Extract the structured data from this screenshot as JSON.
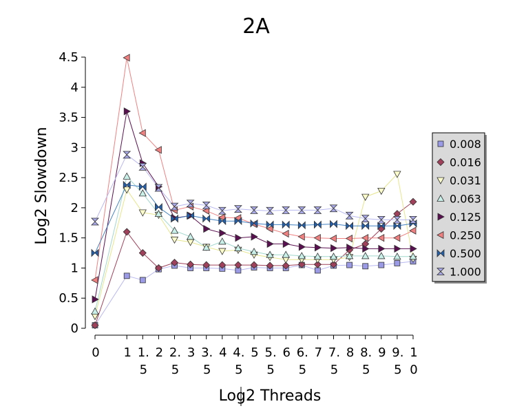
{
  "chart_data": {
    "type": "line",
    "title": "2A",
    "xlabel": "Log2 Threads",
    "ylabel": "Log2 Slowdown",
    "x": [
      0,
      1,
      1.5,
      2,
      2.5,
      3,
      3.5,
      4,
      4.5,
      5,
      5.5,
      6,
      6.5,
      7,
      7.5,
      8,
      8.5,
      9,
      9.5,
      10
    ],
    "x_tick_labels": [
      [
        "0"
      ],
      [
        "1"
      ],
      [
        "1.",
        "5"
      ],
      [
        "2"
      ],
      [
        "2.",
        "5"
      ],
      [
        "3"
      ],
      [
        "3.",
        "5"
      ],
      [
        "4"
      ],
      [
        "4.",
        "5"
      ],
      [
        "5"
      ],
      [
        "5.",
        "5"
      ],
      [
        "6"
      ],
      [
        "6.",
        "5"
      ],
      [
        "7"
      ],
      [
        "7.",
        "5"
      ],
      [
        "8"
      ],
      [
        "8.",
        "5"
      ],
      [
        "9"
      ],
      [
        "9.",
        "5"
      ],
      [
        "1",
        "0"
      ]
    ],
    "ylim": [
      0,
      4.5
    ],
    "y_ticks": [
      "0",
      "0.5",
      "1",
      "1.5",
      "2",
      "2.5",
      "3",
      "3.5",
      "4",
      "4.5"
    ],
    "legend_position": "right",
    "grid": false,
    "series": [
      {
        "name": "0.008",
        "marker": "square",
        "color": "#9a9ae6",
        "line_color": "#b8b8f0",
        "values": [
          0.05,
          0.87,
          0.8,
          0.98,
          1.04,
          1.0,
          1.0,
          0.99,
          0.96,
          1.01,
          1.0,
          1.0,
          1.05,
          0.96,
          1.04,
          1.05,
          1.03,
          1.05,
          1.08,
          1.11
        ]
      },
      {
        "name": "0.016",
        "marker": "diamond",
        "color": "#a0405a",
        "line_color": "#a0405a",
        "values": [
          0.05,
          1.6,
          1.25,
          1.0,
          1.09,
          1.06,
          1.05,
          1.05,
          1.05,
          1.05,
          1.04,
          1.04,
          1.06,
          1.06,
          1.06,
          1.3,
          1.4,
          1.65,
          1.9,
          2.1
        ]
      },
      {
        "name": "0.031",
        "marker": "triangle-down",
        "color": "#ffffcc",
        "line_color": "#e6e68c",
        "values": [
          0.2,
          2.3,
          1.92,
          1.88,
          1.47,
          1.43,
          1.35,
          1.28,
          1.3,
          1.22,
          1.18,
          1.14,
          1.14,
          1.14,
          1.14,
          1.18,
          2.18,
          2.28,
          2.56,
          1.15
        ]
      },
      {
        "name": "0.063",
        "marker": "triangle-up",
        "color": "#c8f0e8",
        "line_color": "#a0d8cc",
        "values": [
          0.28,
          2.52,
          2.24,
          1.9,
          1.62,
          1.52,
          1.34,
          1.44,
          1.33,
          1.27,
          1.22,
          1.22,
          1.2,
          1.19,
          1.19,
          1.2,
          1.2,
          1.2,
          1.19,
          1.19
        ]
      },
      {
        "name": "0.125",
        "marker": "triangle-right",
        "color": "#5a1050",
        "line_color": "#5a1050",
        "values": [
          0.48,
          3.6,
          2.74,
          2.35,
          1.83,
          1.87,
          1.65,
          1.58,
          1.5,
          1.52,
          1.4,
          1.4,
          1.35,
          1.34,
          1.33,
          1.34,
          1.32,
          1.32,
          1.32,
          1.32
        ]
      },
      {
        "name": "0.250",
        "marker": "triangle-left",
        "color": "#f08080",
        "line_color": "#f08080",
        "values": [
          0.8,
          4.49,
          3.24,
          2.96,
          1.96,
          2.02,
          1.95,
          1.84,
          1.83,
          1.73,
          1.65,
          1.57,
          1.52,
          1.5,
          1.49,
          1.49,
          1.5,
          1.5,
          1.5,
          1.62
        ]
      },
      {
        "name": "0.500",
        "marker": "bowtie",
        "color": "#2060b0",
        "line_color": "#4080c0",
        "values": [
          1.25,
          2.38,
          2.35,
          2.01,
          1.82,
          1.87,
          1.82,
          1.78,
          1.78,
          1.74,
          1.72,
          1.72,
          1.71,
          1.72,
          1.73,
          1.7,
          1.7,
          1.7,
          1.7,
          1.74
        ]
      },
      {
        "name": "1.000",
        "marker": "hourglass",
        "color": "#a8a8e8",
        "line_color": "#b8b8f0",
        "values": [
          1.77,
          2.88,
          2.68,
          2.33,
          2.02,
          2.07,
          2.04,
          1.95,
          1.98,
          1.96,
          1.95,
          1.96,
          1.96,
          1.96,
          1.99,
          1.87,
          1.82,
          1.8,
          1.8,
          1.8
        ]
      }
    ]
  }
}
